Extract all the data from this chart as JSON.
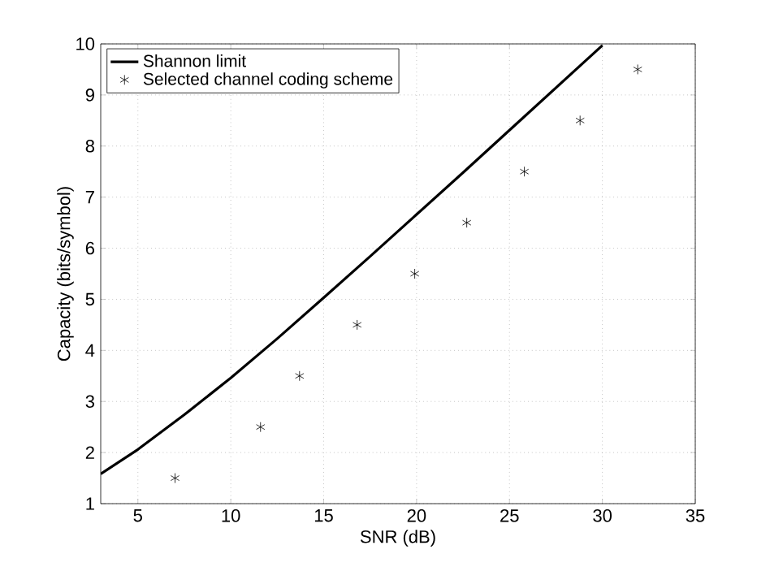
{
  "chart_data": {
    "type": "line",
    "xlabel": "SNR (dB)",
    "ylabel": "Capacity (bits/symbol)",
    "xlim": [
      3,
      35
    ],
    "ylim": [
      1,
      10
    ],
    "xticks": [
      5,
      10,
      15,
      20,
      25,
      30,
      35
    ],
    "yticks": [
      1,
      2,
      3,
      4,
      5,
      6,
      7,
      8,
      9,
      10
    ],
    "grid": true,
    "legend": "top left",
    "series": [
      {
        "name": "Shannon limit",
        "color": "#000000",
        "marker": "none",
        "line_style": "solid",
        "x": [
          3,
          5,
          7.5,
          10,
          12.5,
          15,
          17.5,
          20,
          22.5,
          25,
          27.5,
          30
        ],
        "values": [
          1.58,
          2.06,
          2.74,
          3.46,
          4.23,
          5.03,
          5.84,
          6.66,
          7.48,
          8.31,
          9.14,
          9.97
        ]
      },
      {
        "name": "Selected channel coding scheme",
        "type": "scatter",
        "color": "#000000",
        "marker": "cross",
        "x": [
          7,
          11.6,
          13.7,
          16.8,
          19.9,
          22.7,
          25.8,
          28.8,
          31.9
        ],
        "values": [
          1.5,
          2.5,
          3.5,
          4.5,
          5.5,
          6.5,
          7.5,
          8.5,
          9.5
        ]
      }
    ]
  }
}
